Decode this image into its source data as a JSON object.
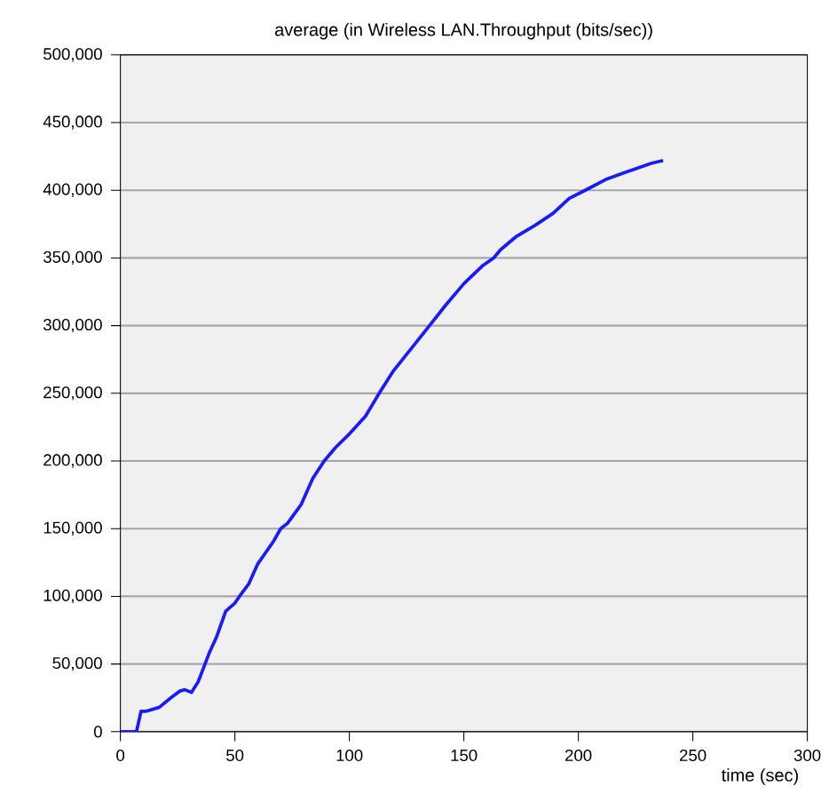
{
  "chart_data": {
    "type": "line",
    "title": "average (in Wireless LAN.Throughput (bits/sec))",
    "xlabel": "time (sec)",
    "x": [
      0,
      7,
      9,
      11,
      17,
      22,
      26,
      28,
      31,
      34,
      39,
      42,
      46,
      50,
      52,
      56,
      60,
      67,
      70,
      73,
      79,
      84,
      89,
      94,
      100,
      107,
      113,
      119,
      127,
      135,
      142,
      150,
      158,
      163,
      166,
      173,
      181,
      189,
      196,
      203,
      212,
      220,
      227,
      232,
      237
    ],
    "series": [
      {
        "color": "#1a1aff",
        "values": [
          0,
          0,
          15000,
          15000,
          18000,
          25000,
          30000,
          31000,
          29000,
          37000,
          59000,
          70000,
          89000,
          95000,
          100000,
          109000,
          124000,
          141000,
          150000,
          154000,
          168000,
          187000,
          200000,
          210000,
          220000,
          233000,
          250000,
          266000,
          283000,
          300000,
          315000,
          331000,
          344000,
          350000,
          356000,
          366000,
          374000,
          383000,
          394000,
          400000,
          408000,
          413000,
          417000,
          420000,
          422000
        ]
      }
    ],
    "xlim": [
      0,
      300
    ],
    "ylim": [
      0,
      500000
    ],
    "xticks": [
      0,
      50,
      100,
      150,
      200,
      250,
      300
    ],
    "yticks": [
      {
        "value": 0,
        "label": "0"
      },
      {
        "value": 50000,
        "label": "50,000"
      },
      {
        "value": 100000,
        "label": "100,000"
      },
      {
        "value": 150000,
        "label": "150,000"
      },
      {
        "value": 200000,
        "label": "200,000"
      },
      {
        "value": 250000,
        "label": "250,000"
      },
      {
        "value": 300000,
        "label": "300,000"
      },
      {
        "value": 350000,
        "label": "350,000"
      },
      {
        "value": 400000,
        "label": "400,000"
      },
      {
        "value": 450000,
        "label": "450,000"
      },
      {
        "value": 500000,
        "label": "500,000"
      }
    ],
    "grid": "y"
  }
}
